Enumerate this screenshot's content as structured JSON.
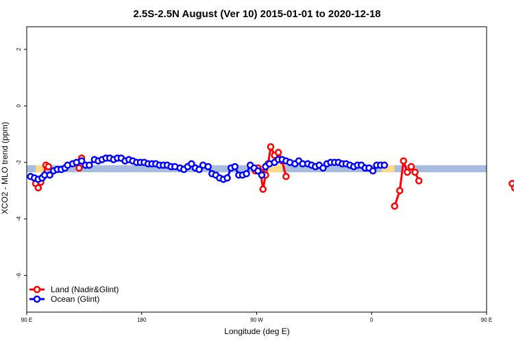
{
  "chart_data": {
    "type": "line",
    "title": "2.5S-2.5N August (Ver 10)   2015-01-01 to 2020-12-18",
    "xlabel": "Longitude (deg E)",
    "ylabel": "XCO2 - MLO trend (ppm)",
    "xlim": [
      90,
      450
    ],
    "ylim": [
      -7.3,
      2.8
    ],
    "x_ticks": [
      {
        "value": 90,
        "label": "90 E"
      },
      {
        "value": 180,
        "label": "180"
      },
      {
        "value": 270,
        "label": "90 W"
      },
      {
        "value": 360,
        "label": "0"
      },
      {
        "value": 450,
        "label": "90 E"
      },
      {
        "value": 540,
        "label": "180"
      }
    ],
    "y_ticks": [
      2,
      0,
      -2,
      -4,
      -6
    ],
    "background_band": {
      "y_range": [
        -2.35,
        -2.1
      ],
      "ocean_color": "#a7bde0",
      "land_color": "#fdd98a",
      "land_segments": [
        [
          97,
          103
        ],
        [
          271,
          290
        ],
        [
          368,
          378
        ],
        [
          474,
          480
        ]
      ]
    },
    "series": [
      {
        "name": "Land (Nadir&Glint)",
        "color": "#ff0000",
        "segments": [
          {
            "x": [
              97,
              99,
              101,
              103,
              105,
              107
            ],
            "y": [
              -2.75,
              -2.9,
              -2.7,
              -2.5,
              -2.1,
              -2.15
            ]
          },
          {
            "x": [
              131,
              133
            ],
            "y": [
              -2.2,
              -1.85
            ]
          },
          {
            "x": [
              269,
              271,
              273,
              275,
              277,
              279,
              281,
              284,
              287,
              290,
              293
            ],
            "y": [
              -2.3,
              -2.2,
              -2.35,
              -2.95,
              -2.45,
              -2.05,
              -1.45,
              -1.75,
              -1.65,
              -1.95,
              -2.5
            ]
          },
          {
            "x": [
              378,
              382,
              385,
              388,
              391,
              394,
              397
            ],
            "y": [
              -3.55,
              -3.0,
              -1.95,
              -2.35,
              -2.15,
              -2.35,
              -2.65
            ]
          },
          {
            "x": [
              470,
              472,
              474,
              476,
              478,
              480,
              482,
              485,
              488,
              491,
              494,
              497
            ],
            "y": [
              -2.75,
              -2.9,
              -2.65,
              -2.3,
              -2.1,
              -2.15,
              -2.3,
              -2.25,
              -2.25,
              -2.3,
              -2.15,
              -1.85
            ]
          }
        ]
      },
      {
        "name": "Ocean (Glint)",
        "color": "#0000ff",
        "segments": [
          {
            "x": [
              93,
              96,
              99,
              102,
              104,
              108,
              111,
              114,
              117,
              120,
              122,
              126,
              129,
              133,
              136,
              139,
              143,
              146,
              149,
              152,
              155,
              158,
              161,
              164,
              167,
              170,
              173,
              176,
              179,
              182,
              185,
              188,
              191,
              194,
              197,
              200,
              203,
              206,
              210,
              213,
              216,
              219,
              222,
              225,
              228,
              232,
              235,
              238,
              241,
              244,
              247,
              250,
              253,
              256,
              259,
              262,
              265,
              268,
              271,
              274,
              277,
              280,
              284,
              287,
              290,
              293,
              296,
              300,
              303,
              306,
              310,
              313,
              316,
              319,
              322,
              325,
              328,
              331,
              334,
              337,
              340,
              343,
              346,
              349,
              352,
              355,
              358,
              361,
              364,
              367,
              370
            ],
            "y": [
              -2.5,
              -2.55,
              -2.6,
              -2.55,
              -2.45,
              -2.45,
              -2.3,
              -2.25,
              -2.25,
              -2.2,
              -2.1,
              -2.05,
              -2.0,
              -1.95,
              -2.1,
              -2.1,
              -1.9,
              -1.95,
              -1.9,
              -1.85,
              -1.85,
              -1.9,
              -1.85,
              -1.85,
              -1.95,
              -1.9,
              -1.95,
              -2.0,
              -2.0,
              -2.0,
              -2.05,
              -2.05,
              -2.05,
              -2.1,
              -2.1,
              -2.1,
              -2.15,
              -2.15,
              -2.2,
              -2.25,
              -2.15,
              -2.05,
              -2.2,
              -2.25,
              -2.1,
              -2.15,
              -2.4,
              -2.45,
              -2.55,
              -2.6,
              -2.55,
              -2.2,
              -2.15,
              -2.45,
              -2.45,
              -2.4,
              -2.1,
              -2.2,
              -2.3,
              -2.45,
              -2.15,
              -2.05,
              -2.0,
              -1.9,
              -1.9,
              -1.95,
              -2.0,
              -2.05,
              -1.95,
              -2.05,
              -2.05,
              -2.1,
              -2.15,
              -2.1,
              -2.2,
              -2.05,
              -2.0,
              -2.0,
              -2.0,
              -2.05,
              -2.05,
              -2.1,
              -2.15,
              -2.1,
              -2.1,
              -2.2,
              -2.2,
              -2.3,
              -2.1,
              -2.1,
              -2.1
            ]
          }
        ]
      }
    ]
  },
  "legend": {
    "items": [
      {
        "label": "Land (Nadir&Glint)",
        "color": "#ff0000"
      },
      {
        "label": "Ocean (Glint)",
        "color": "#0000ff"
      }
    ]
  }
}
